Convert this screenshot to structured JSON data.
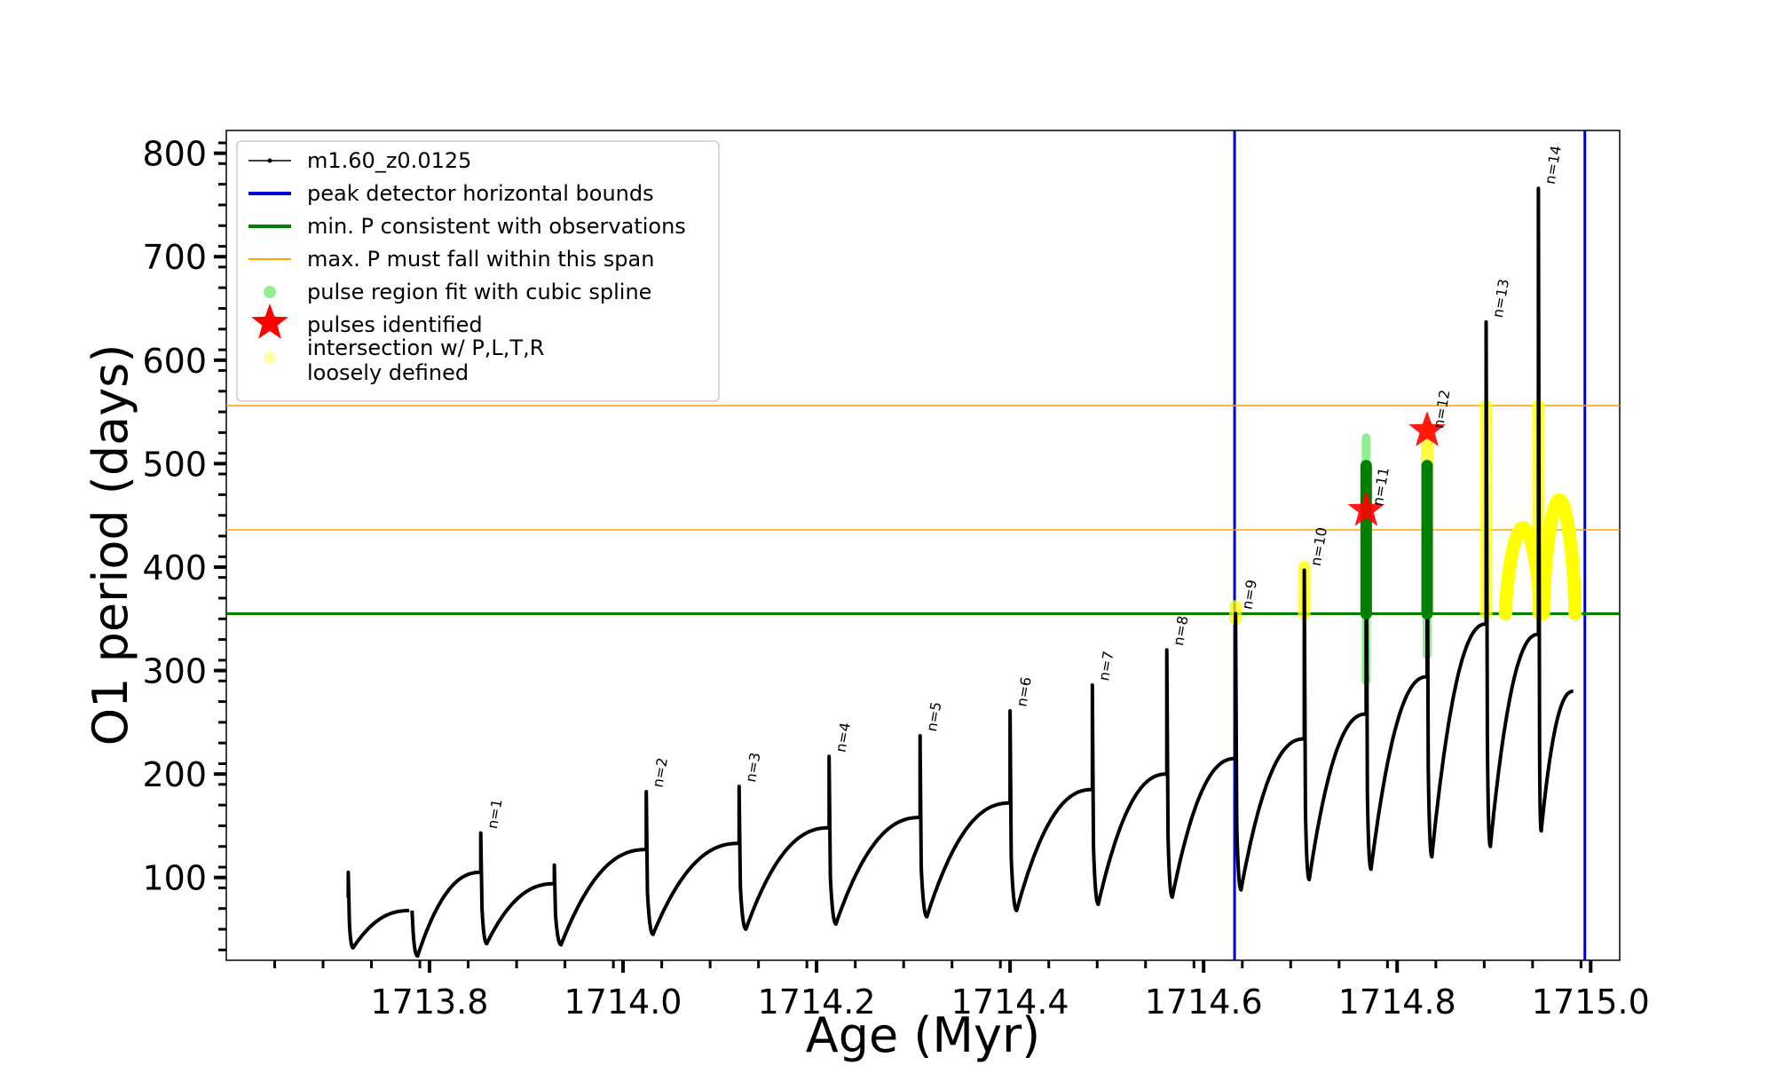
{
  "chart_data": {
    "type": "line",
    "title": "",
    "xlabel": "Age (Myr)",
    "ylabel": "O1 period (days)",
    "xlim": [
      1713.59,
      1715.03
    ],
    "ylim": [
      20,
      822
    ],
    "x_scale": "linear",
    "y_scale": "linear",
    "grid": false,
    "legend_position": "top-left",
    "xticks": [
      1713.8,
      1714.0,
      1714.2,
      1714.4,
      1714.6,
      1714.8,
      1715.0
    ],
    "xtick_labels": [
      "1713.8",
      "1714.0",
      "1714.2",
      "1714.4",
      "1714.6",
      "1714.8",
      "1715.0"
    ],
    "yticks": [
      100,
      200,
      300,
      400,
      500,
      600,
      700,
      800
    ],
    "ytick_labels": [
      "100",
      "200",
      "300",
      "400",
      "500",
      "600",
      "700",
      "800"
    ],
    "series": [
      {
        "name": "m1.60_z0.0125",
        "color": "#000000",
        "pulse_cycles": [
          {
            "x0": 1713.716,
            "x1": 1713.779,
            "pre": 80,
            "spike": 105,
            "min": 32,
            "end": 68
          },
          {
            "x0": 1713.782,
            "x1": 1713.853,
            "pre": 68,
            "spike": 68,
            "min": 24,
            "end": 105
          },
          {
            "x0": 1713.853,
            "x1": 1713.929,
            "pre": 105,
            "spike": 143,
            "min": 36,
            "end": 94
          },
          {
            "x0": 1713.929,
            "x1": 1714.024,
            "pre": 94,
            "spike": 112,
            "min": 35,
            "end": 127
          },
          {
            "x0": 1714.024,
            "x1": 1714.12,
            "pre": 127,
            "spike": 183,
            "min": 45,
            "end": 133
          },
          {
            "x0": 1714.12,
            "x1": 1714.213,
            "pre": 133,
            "spike": 188,
            "min": 50,
            "end": 148
          },
          {
            "x0": 1714.213,
            "x1": 1714.307,
            "pre": 148,
            "spike": 217,
            "min": 55,
            "end": 158
          },
          {
            "x0": 1714.307,
            "x1": 1714.4,
            "pre": 158,
            "spike": 237,
            "min": 62,
            "end": 172
          },
          {
            "x0": 1714.4,
            "x1": 1714.485,
            "pre": 172,
            "spike": 261,
            "min": 68,
            "end": 185
          },
          {
            "x0": 1714.485,
            "x1": 1714.562,
            "pre": 185,
            "spike": 286,
            "min": 74,
            "end": 200
          },
          {
            "x0": 1714.562,
            "x1": 1714.633,
            "pre": 200,
            "spike": 320,
            "min": 81,
            "end": 215
          },
          {
            "x0": 1714.633,
            "x1": 1714.704,
            "pre": 215,
            "spike": 355,
            "min": 88,
            "end": 234
          },
          {
            "x0": 1714.704,
            "x1": 1714.768,
            "pre": 234,
            "spike": 397,
            "min": 98,
            "end": 258
          },
          {
            "x0": 1714.768,
            "x1": 1714.831,
            "pre": 258,
            "spike": 496,
            "min": 108,
            "end": 294
          },
          {
            "x0": 1714.831,
            "x1": 1714.892,
            "pre": 294,
            "spike": 496,
            "min": 120,
            "end": 345
          },
          {
            "x0": 1714.892,
            "x1": 1714.946,
            "pre": 345,
            "spike": 637,
            "min": 130,
            "end": 335
          },
          {
            "x0": 1714.946,
            "x1": 1714.982,
            "pre": 335,
            "spike": 766,
            "min": 145,
            "end": 280
          }
        ]
      }
    ],
    "reference_lines": [
      {
        "name": "peak detector horizontal bounds",
        "orientation": "vertical",
        "values": [
          1714.632,
          1714.994
        ],
        "color": "#0000cc"
      },
      {
        "name": "min. P consistent with observations",
        "orientation": "horizontal",
        "values": [
          355
        ],
        "color": "#008000"
      },
      {
        "name": "max. P must fall within this span",
        "orientation": "horizontal",
        "values": [
          436,
          556
        ],
        "color": "#ffa500"
      }
    ],
    "pulse_labels": [
      {
        "label": "n=1",
        "x": 1713.853,
        "y": 143
      },
      {
        "label": "n=2",
        "x": 1714.024,
        "y": 183
      },
      {
        "label": "n=3",
        "x": 1714.12,
        "y": 188
      },
      {
        "label": "n=4",
        "x": 1714.213,
        "y": 217
      },
      {
        "label": "n=5",
        "x": 1714.307,
        "y": 237
      },
      {
        "label": "n=6",
        "x": 1714.4,
        "y": 261
      },
      {
        "label": "n=7",
        "x": 1714.485,
        "y": 286
      },
      {
        "label": "n=8",
        "x": 1714.562,
        "y": 320
      },
      {
        "label": "n=9",
        "x": 1714.633,
        "y": 355
      },
      {
        "label": "n=10",
        "x": 1714.704,
        "y": 397
      },
      {
        "label": "n=11",
        "x": 1714.768,
        "y": 455
      },
      {
        "label": "n=12",
        "x": 1714.831,
        "y": 530
      },
      {
        "label": "n=13",
        "x": 1714.892,
        "y": 637
      },
      {
        "label": "n=14",
        "x": 1714.946,
        "y": 766
      }
    ],
    "pulses_identified": [
      {
        "x": 1714.768,
        "y": 455,
        "color": "#ff0000"
      },
      {
        "x": 1714.831,
        "y": 532,
        "color": "#ff0000"
      }
    ],
    "cubic_spline_fit_regions": [
      {
        "x": 1714.768,
        "y_low": 290,
        "y_high": 525,
        "color": "#90ee90"
      },
      {
        "x": 1714.831,
        "y_low": 315,
        "y_high": 500,
        "color": "#90ee90"
      }
    ],
    "green_spike_segments": [
      {
        "x": 1714.768,
        "y_low": 355,
        "y_high": 498,
        "color": "#008000"
      },
      {
        "x": 1714.831,
        "y_low": 355,
        "y_high": 498,
        "color": "#008000"
      }
    ],
    "loosely_defined_regions": [
      {
        "type": "bar",
        "x": 1714.633,
        "y_low": 350,
        "y_high": 362
      },
      {
        "type": "bar",
        "x": 1714.704,
        "y_low": 355,
        "y_high": 400
      },
      {
        "type": "bar",
        "x": 1714.831,
        "y_low": 500,
        "y_high": 535
      },
      {
        "type": "bar",
        "x": 1714.892,
        "y_low": 355,
        "y_high": 556
      },
      {
        "type": "bar",
        "x": 1714.946,
        "y_low": 355,
        "y_high": 556
      },
      {
        "type": "arc",
        "x0": 1714.912,
        "x1": 1714.948,
        "y_base": 355,
        "y_peak": 438
      },
      {
        "type": "arc",
        "x0": 1714.951,
        "x1": 1714.984,
        "y_base": 355,
        "y_peak": 465
      }
    ],
    "highlight_colors": {
      "loosely_defined": "#ffff00",
      "loosely_defined_legend": "#ffffaa"
    },
    "legend": [
      {
        "label": "m1.60_z0.0125",
        "kind": "line-marker",
        "color": "#000000"
      },
      {
        "label": "peak detector horizontal bounds",
        "kind": "line",
        "color": "#0000cc"
      },
      {
        "label": "min. P consistent with observations",
        "kind": "line",
        "color": "#008000"
      },
      {
        "label": "max. P must fall within this span",
        "kind": "thin-line",
        "color": "#ffa500"
      },
      {
        "label": "pulse region fit with cubic spline",
        "kind": "dot",
        "color": "#90ee90"
      },
      {
        "label": "pulses identified",
        "kind": "star",
        "color": "#ff0000"
      },
      {
        "label": "intersection w/ P,L,T,R",
        "label2": "loosely defined",
        "kind": "dot",
        "color": "#ffffaa"
      }
    ]
  }
}
